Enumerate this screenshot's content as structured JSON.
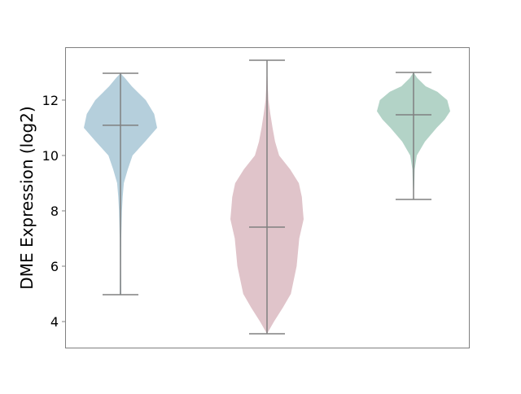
{
  "chart_data": {
    "type": "violin",
    "title": "",
    "xlabel": "",
    "ylabel": "DME Expression (log2)",
    "ylim": [
      3.06,
      13.91
    ],
    "yticks": [
      4,
      6,
      8,
      10,
      12
    ],
    "ytick_labels": [
      "4",
      "6",
      "8",
      "10",
      "12"
    ],
    "grid": false,
    "line_color": "#808080",
    "series": [
      {
        "color": "#b5cfdc",
        "min": 4.97,
        "max": 12.97,
        "median": 11.09,
        "density": [
          [
            4.97,
            0
          ],
          [
            5,
            0.02
          ],
          [
            6,
            0.015
          ],
          [
            7,
            0.02
          ],
          [
            8,
            0.04
          ],
          [
            8.5,
            0.06
          ],
          [
            9,
            0.09
          ],
          [
            9.5,
            0.2
          ],
          [
            10,
            0.33
          ],
          [
            10.5,
            0.67
          ],
          [
            11,
            1.0
          ],
          [
            11.5,
            0.92
          ],
          [
            12,
            0.69
          ],
          [
            12.5,
            0.31
          ],
          [
            12.8,
            0.12
          ],
          [
            12.97,
            0
          ]
        ]
      },
      {
        "color": "#e0c4ca",
        "min": 3.56,
        "max": 13.44,
        "median": 7.41,
        "density": [
          [
            3.56,
            0
          ],
          [
            4,
            0.19
          ],
          [
            4.5,
            0.43
          ],
          [
            5,
            0.65
          ],
          [
            6,
            0.81
          ],
          [
            7,
            0.88
          ],
          [
            7.7,
            1.0
          ],
          [
            8,
            0.98
          ],
          [
            8.5,
            0.95
          ],
          [
            9,
            0.87
          ],
          [
            9.5,
            0.63
          ],
          [
            10,
            0.33
          ],
          [
            10.5,
            0.22
          ],
          [
            11,
            0.15
          ],
          [
            11.5,
            0.09
          ],
          [
            12,
            0.04
          ],
          [
            12.5,
            0.02
          ],
          [
            13,
            0.01
          ],
          [
            13.44,
            0
          ]
        ]
      },
      {
        "color": "#b3d3c7",
        "min": 8.41,
        "max": 13.0,
        "median": 11.47,
        "density": [
          [
            8.41,
            0
          ],
          [
            9,
            0.02
          ],
          [
            9.5,
            0.03
          ],
          [
            10,
            0.09
          ],
          [
            10.5,
            0.31
          ],
          [
            11,
            0.63
          ],
          [
            11.3,
            0.85
          ],
          [
            11.6,
            1.0
          ],
          [
            12,
            0.92
          ],
          [
            12.3,
            0.65
          ],
          [
            12.5,
            0.33
          ],
          [
            12.8,
            0.1
          ],
          [
            13.0,
            0
          ]
        ]
      }
    ]
  }
}
